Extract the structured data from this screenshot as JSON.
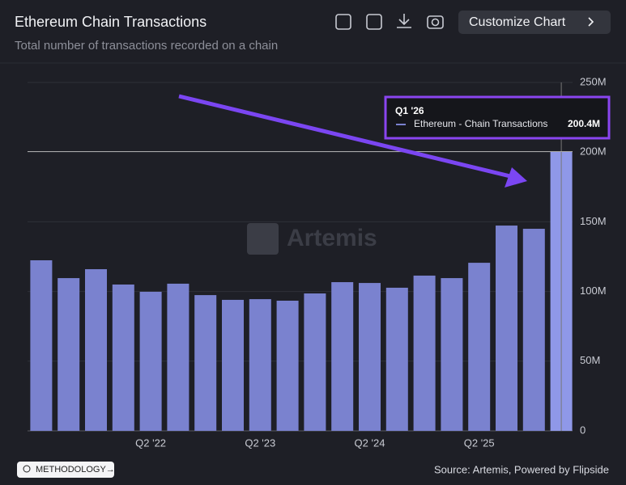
{
  "header": {
    "title": "Ethereum Chain Transactions",
    "subtitle": "Total number of transactions recorded on a chain",
    "button": "Customize Chart"
  },
  "chart_data": {
    "type": "bar",
    "categories": [
      null,
      null,
      null,
      null,
      "Q2 '22",
      null,
      null,
      null,
      "Q2 '23",
      null,
      null,
      null,
      "Q2 '24",
      null,
      null,
      null,
      "Q2 '25",
      null,
      null,
      null
    ],
    "series": [
      {
        "name": "Ethereum - Chain Transactions",
        "color": "#7a82cf",
        "values": [
          122.4,
          109.6,
          116,
          105,
          99.8,
          105.6,
          97.4,
          94,
          94.5,
          93.4,
          98.6,
          106.7,
          106.1,
          102.7,
          111.4,
          109.6,
          120.6,
          147.3,
          145,
          200.4
        ],
        "value_labels": [
          null,
          null,
          null,
          null,
          null,
          null,
          null,
          null,
          null,
          null,
          null,
          null,
          null,
          null,
          null,
          null,
          null,
          null,
          null,
          "200.4M"
        ]
      }
    ],
    "highlight_color": "#8f98e8",
    "ylim": [
      0,
      250
    ],
    "yticks": [
      {
        "value": 0,
        "label": "0"
      },
      {
        "value": 50,
        "label": "50M"
      },
      {
        "value": 100,
        "label": "100M"
      },
      {
        "value": 150,
        "label": "150M"
      },
      {
        "value": 200,
        "label": "200M"
      },
      {
        "value": 250,
        "label": "250M"
      }
    ],
    "grid": true,
    "tooltip": {
      "title": "Q1 '26"
    },
    "watermark": "Artemis"
  },
  "footer": {
    "methodology": "METHODOLOGY→",
    "source": "Source: Artemis, Powered by Flipside"
  }
}
